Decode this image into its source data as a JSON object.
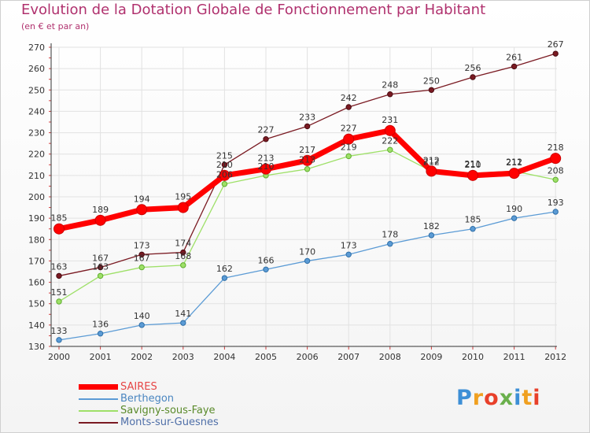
{
  "chart_data": {
    "type": "line",
    "title": "Evolution de la Dotation Globale de Fonctionnement par Habitant",
    "subtitle": "(en € et par an)",
    "xlabel": "",
    "ylabel": "",
    "categories": [
      "2000",
      "2001",
      "2002",
      "2003",
      "2004",
      "2005",
      "2006",
      "2007",
      "2008",
      "2009",
      "2010",
      "2011",
      "2012"
    ],
    "ylim": [
      130,
      270
    ],
    "yticks": [
      130,
      140,
      150,
      160,
      170,
      180,
      190,
      200,
      210,
      220,
      230,
      240,
      250,
      260,
      270
    ],
    "grid": true,
    "legend_position": "bottom-left",
    "series": [
      {
        "name": "SAIRES",
        "color": "#ff0000",
        "values": [
          185,
          189,
          194,
          195,
          210,
          213,
          217,
          227,
          231,
          212,
          210,
          211,
          218
        ]
      },
      {
        "name": "Berthegon",
        "color": "#5b9bd5",
        "values": [
          133,
          136,
          140,
          141,
          162,
          166,
          170,
          173,
          178,
          182,
          185,
          190,
          193
        ]
      },
      {
        "name": "Savigny-sous-Faye",
        "color": "#9ee068",
        "values": [
          151,
          163,
          167,
          168,
          206,
          210,
          213,
          219,
          222,
          212,
          211,
          212,
          208
        ]
      },
      {
        "name": "Monts-sur-Guesnes",
        "color": "#7a1a22",
        "values": [
          163,
          167,
          173,
          174,
          215,
          227,
          233,
          242,
          248,
          250,
          256,
          261,
          267
        ]
      }
    ]
  },
  "logo": {
    "letters": [
      "P",
      "r",
      "o",
      "x",
      "i",
      "t",
      "i"
    ],
    "colors": [
      "#3d8fd6",
      "#f0a020",
      "#e8402a",
      "#6ab04c",
      "#3d8fd6",
      "#f0a020",
      "#e8402a"
    ]
  }
}
